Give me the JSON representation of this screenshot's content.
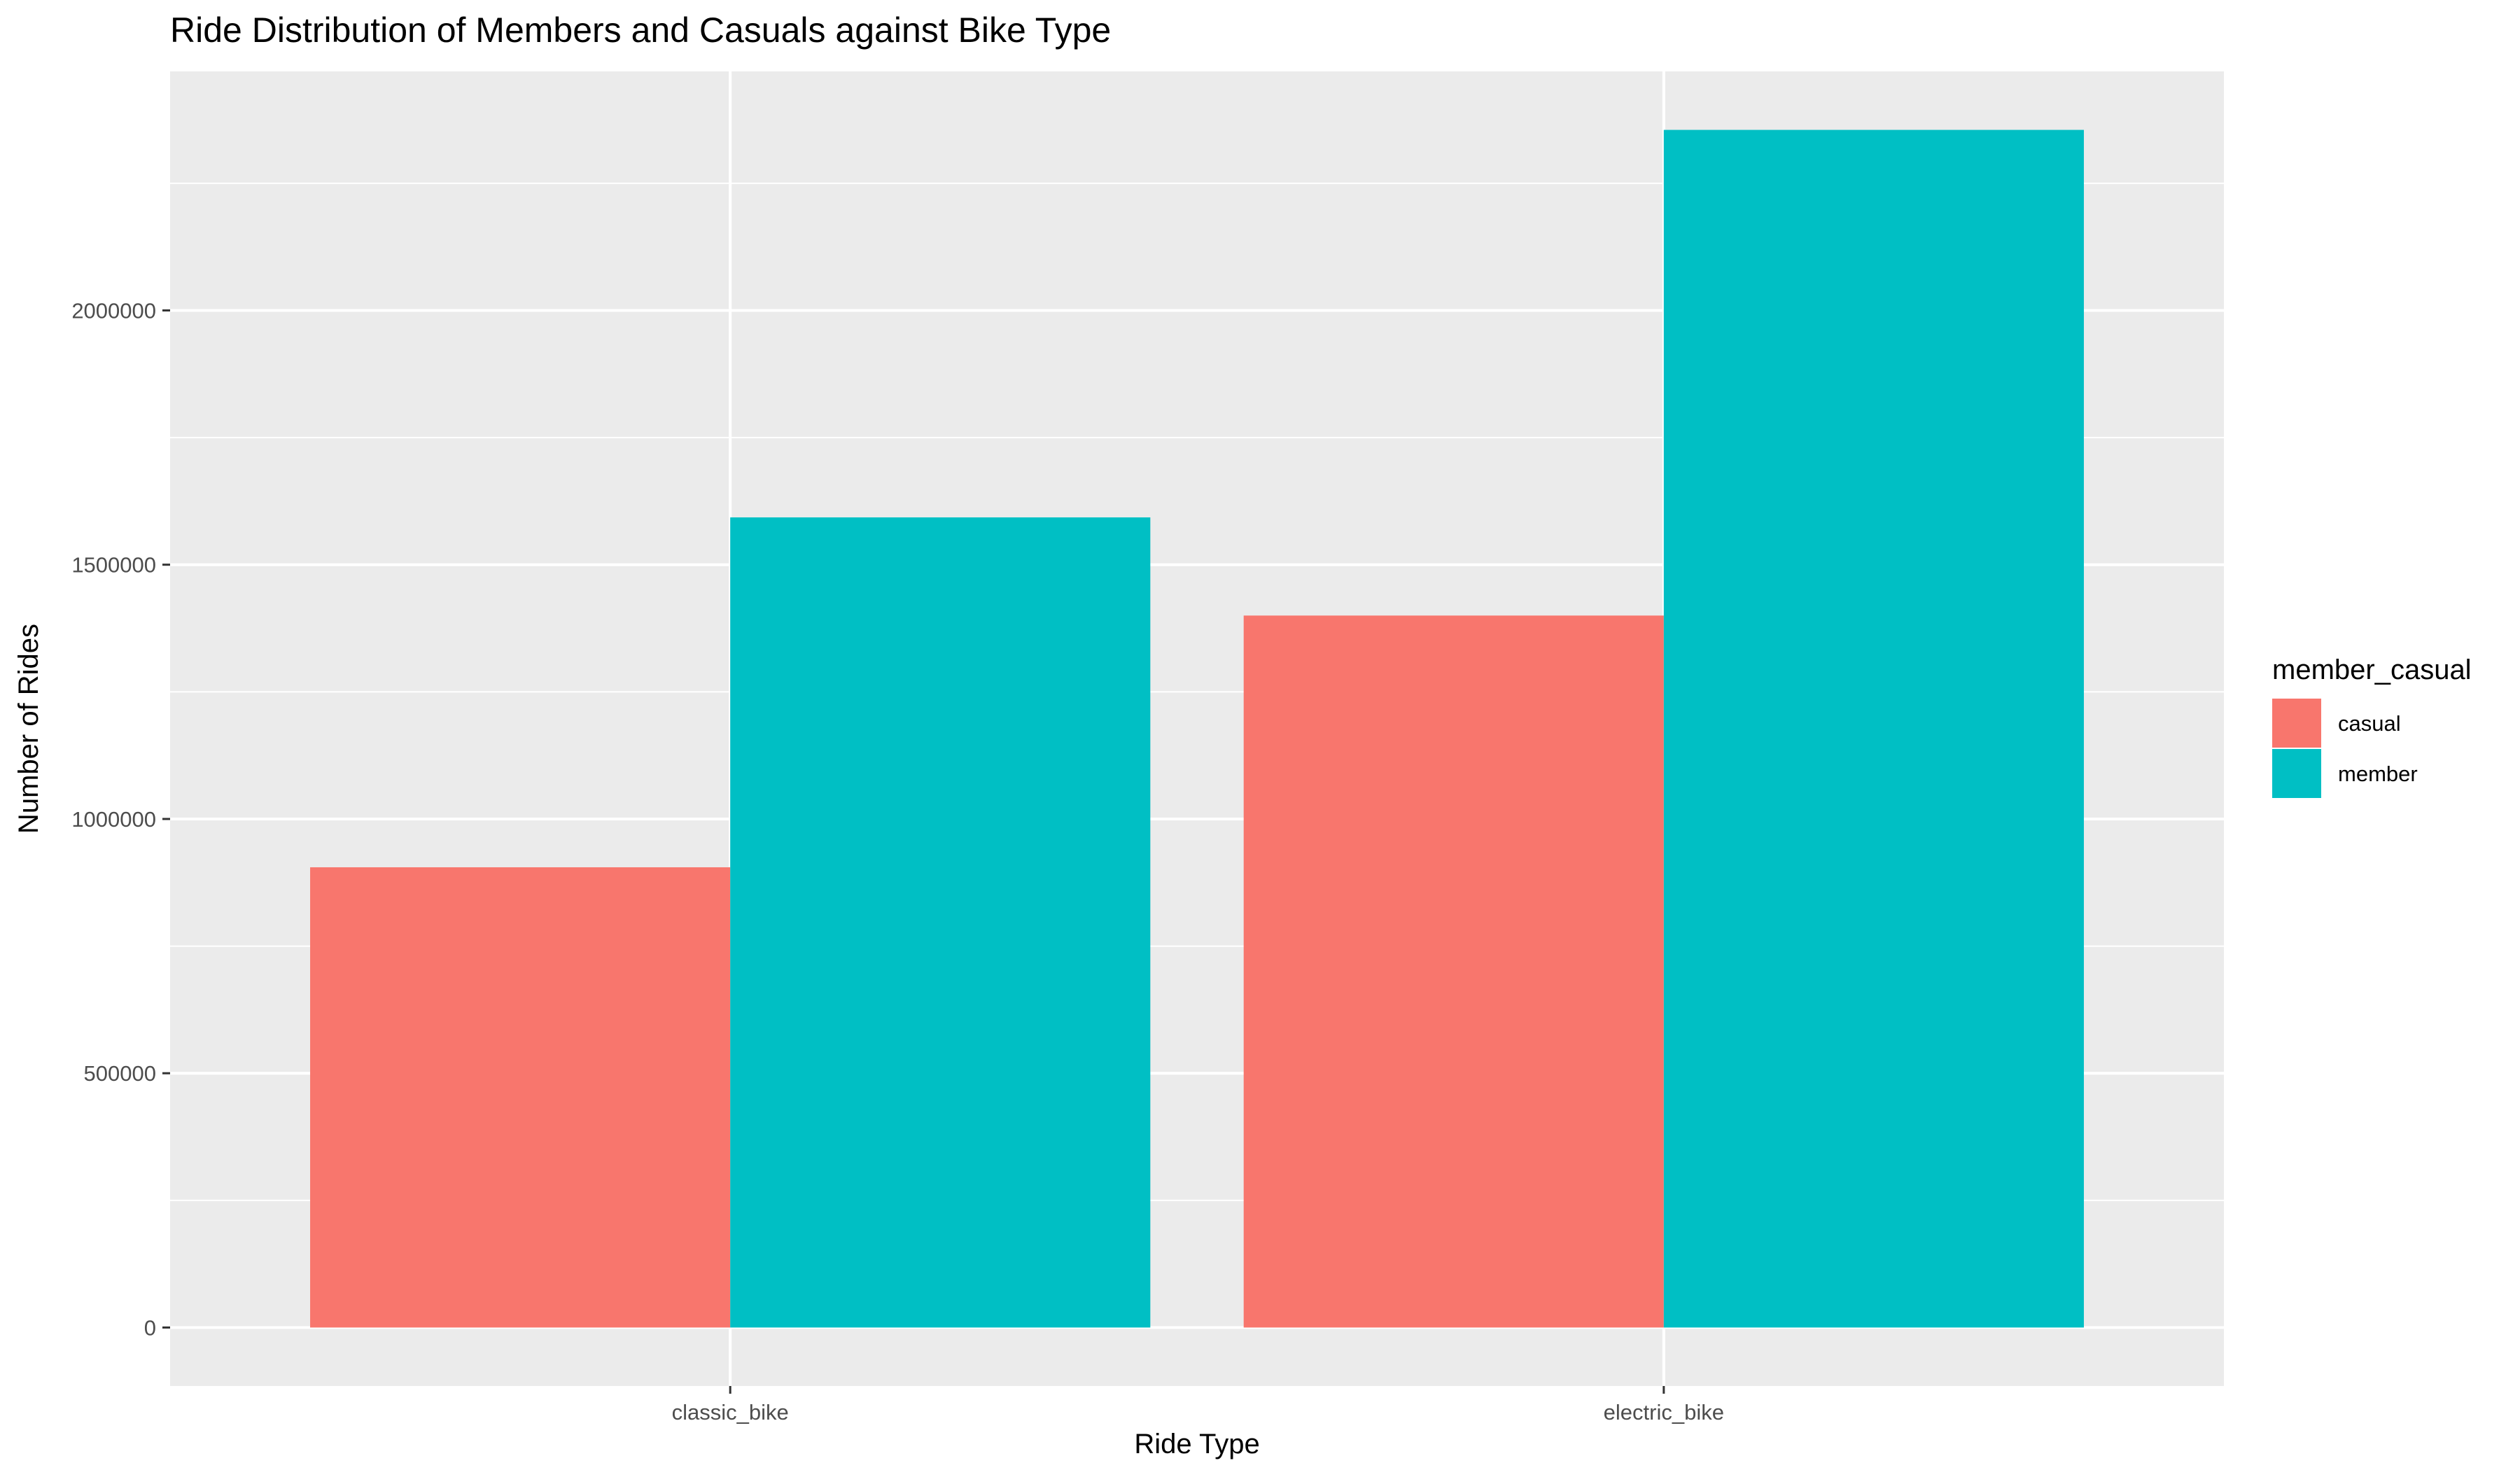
{
  "chart_data": {
    "type": "bar",
    "title": "Ride Distribution of Members and Casuals against Bike Type",
    "xlabel": "Ride Type",
    "ylabel": "Number of Rides",
    "categories": [
      "classic_bike",
      "electric_bike"
    ],
    "series": [
      {
        "name": "casual",
        "color": "#F8766D",
        "values": [
          905000,
          1400000
        ]
      },
      {
        "name": "member",
        "color": "#00BFC4",
        "values": [
          1593000,
          2355000
        ]
      }
    ],
    "ylim": [
      -115000,
      2470000
    ],
    "yticks": [
      0,
      500000,
      1000000,
      1500000,
      2000000
    ],
    "ytick_labels": [
      "0",
      "500000",
      "1000000",
      "1500000",
      "2000000"
    ],
    "grid": true,
    "legend": {
      "title": "member_casual",
      "position": "right"
    },
    "panel_color": "#EBEBEB",
    "grid_color": "#FFFFFF"
  }
}
